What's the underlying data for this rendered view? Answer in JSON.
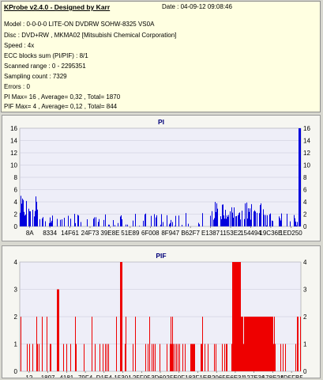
{
  "header": {
    "app_title": "KProbe v2.4.0 - Designed by Karr",
    "date_label": "Date : 04-09-12 09:08:46"
  },
  "info_lines": [
    "Model : 0-0-0-0 LITE-ON DVDRW SOHW-8325  VS0A",
    "Disc : DVD+RW , MKMA02 [Mitsubishi Chemical Corporation]",
    "Speed : 4x",
    "ECC blocks sum (PI/PIF) : 8/1",
    "Scanned range : 0 - 2295351",
    "Sampling count : 7329",
    "Errors : 0",
    "PI Max= 16 , Average= 0,32 , Total= 1870",
    "PIF Max= 4 , Average= 0,12 , Total= 844"
  ],
  "colors": {
    "pi_series": "#0000dd",
    "pif_series": "#ee0000",
    "plot_bg": "#eeeef8",
    "info_bg": "#ffffe1"
  },
  "chart_data": [
    {
      "type": "bar",
      "title": "PI",
      "ylim": [
        0,
        16
      ],
      "yticks": [
        0,
        2,
        4,
        6,
        8,
        10,
        12,
        14,
        16
      ],
      "xtick_labels": [
        "8A",
        "8334",
        "14F61",
        "24F73",
        "39E8E",
        "51E89",
        "6F008",
        "8F947",
        "B62F7",
        "E1387",
        "1153E2",
        "154494",
        "19C36E",
        "1ED250"
      ],
      "grid": true,
      "series": [
        {
          "max": 16,
          "average": 0.32,
          "total": 1870
        }
      ]
    },
    {
      "type": "bar",
      "title": "PIF",
      "ylim": [
        0,
        4
      ],
      "yticks": [
        0,
        1,
        2,
        3,
        4
      ],
      "xtick_labels": [
        "12",
        "1897",
        "4181",
        "79F4",
        "D1E4",
        "15301",
        "25F05",
        "3D692",
        "5E0F1",
        "83F1E",
        "B2065",
        "E6E31",
        "127E36",
        "178E24",
        "1D5FB5"
      ],
      "grid": true,
      "series": [
        {
          "max": 4,
          "average": 0.12,
          "total": 844
        }
      ]
    }
  ]
}
